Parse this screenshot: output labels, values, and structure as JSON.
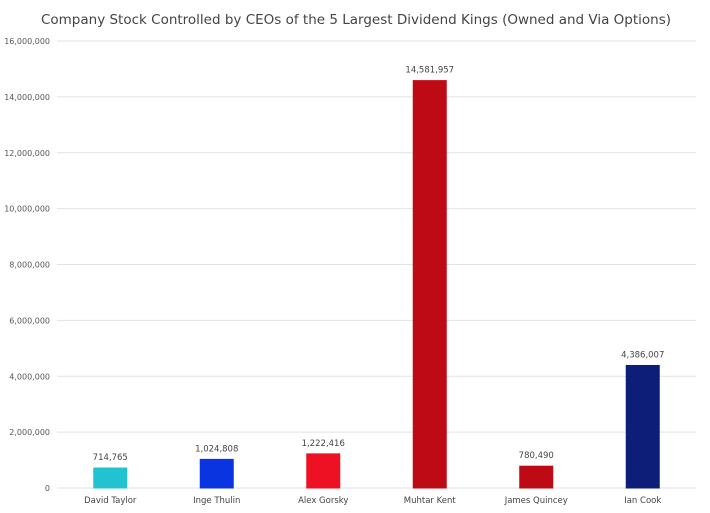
{
  "chart_data": {
    "type": "bar",
    "title": "Company Stock Controlled by CEOs of the 5 Largest Dividend Kings (Owned and Via Options)",
    "xlabel": "",
    "ylabel": "",
    "ylim": [
      0,
      16000000
    ],
    "yticks": [
      0,
      2000000,
      4000000,
      6000000,
      8000000,
      10000000,
      12000000,
      14000000,
      16000000
    ],
    "ytick_labels": [
      "0",
      "2,000,000",
      "4,000,000",
      "6,000,000",
      "8,000,000",
      "10,000,000",
      "12,000,000",
      "14,000,000",
      "16,000,000"
    ],
    "grid": true,
    "legend": "none",
    "categories": [
      "David Taylor",
      "Inge Thulin",
      "Alex Gorsky",
      "Muhtar Kent",
      "James Quincey",
      "Ian Cook"
    ],
    "values": [
      714765,
      1024808,
      1222416,
      14581957,
      780490,
      4386007
    ],
    "data_labels": [
      "714,765",
      "1,024,808",
      "1,222,416",
      "14,581,957",
      "780,490",
      "4,386,007"
    ],
    "colors": [
      "#22c3d0",
      "#0a34e0",
      "#ee1124",
      "#be0a14",
      "#be0a14",
      "#0c1e78"
    ]
  }
}
